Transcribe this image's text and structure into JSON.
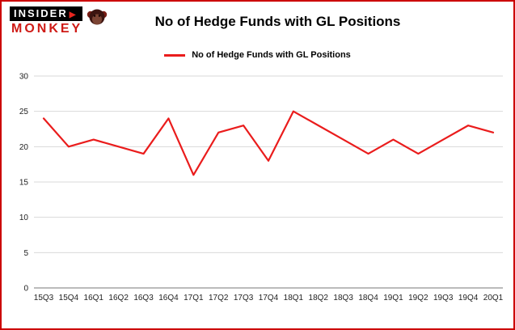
{
  "logo": {
    "insider": "INSIDER",
    "caret": "▶",
    "monkey": "MONKEY"
  },
  "header": {
    "title": "No of Hedge Funds with GL Positions"
  },
  "legend": {
    "label": "No of Hedge Funds with GL Positions",
    "color": "#ea1c1c"
  },
  "chart_data": {
    "type": "line",
    "title": "No of Hedge Funds with GL Positions",
    "series_name": "No of Hedge Funds with GL Positions",
    "categories": [
      "15Q3",
      "15Q4",
      "16Q1",
      "16Q2",
      "16Q3",
      "16Q4",
      "17Q1",
      "17Q2",
      "17Q3",
      "17Q4",
      "18Q1",
      "18Q2",
      "18Q3",
      "18Q4",
      "19Q1",
      "19Q2",
      "19Q3",
      "19Q4",
      "20Q1"
    ],
    "values": [
      24,
      20,
      21,
      20,
      19,
      24,
      16,
      22,
      23,
      18,
      25,
      23,
      21,
      19,
      21,
      19,
      21,
      23,
      22
    ],
    "xlabel": "",
    "ylabel": "",
    "ylim": [
      0,
      30
    ],
    "yticks": [
      0,
      5,
      10,
      15,
      20,
      25,
      30
    ],
    "grid": true,
    "legend_position": "top",
    "line_color": "#ea1c1c"
  },
  "colors": {
    "border": "#cc0000",
    "grid": "#d9d9d9",
    "axis": "#777777"
  }
}
